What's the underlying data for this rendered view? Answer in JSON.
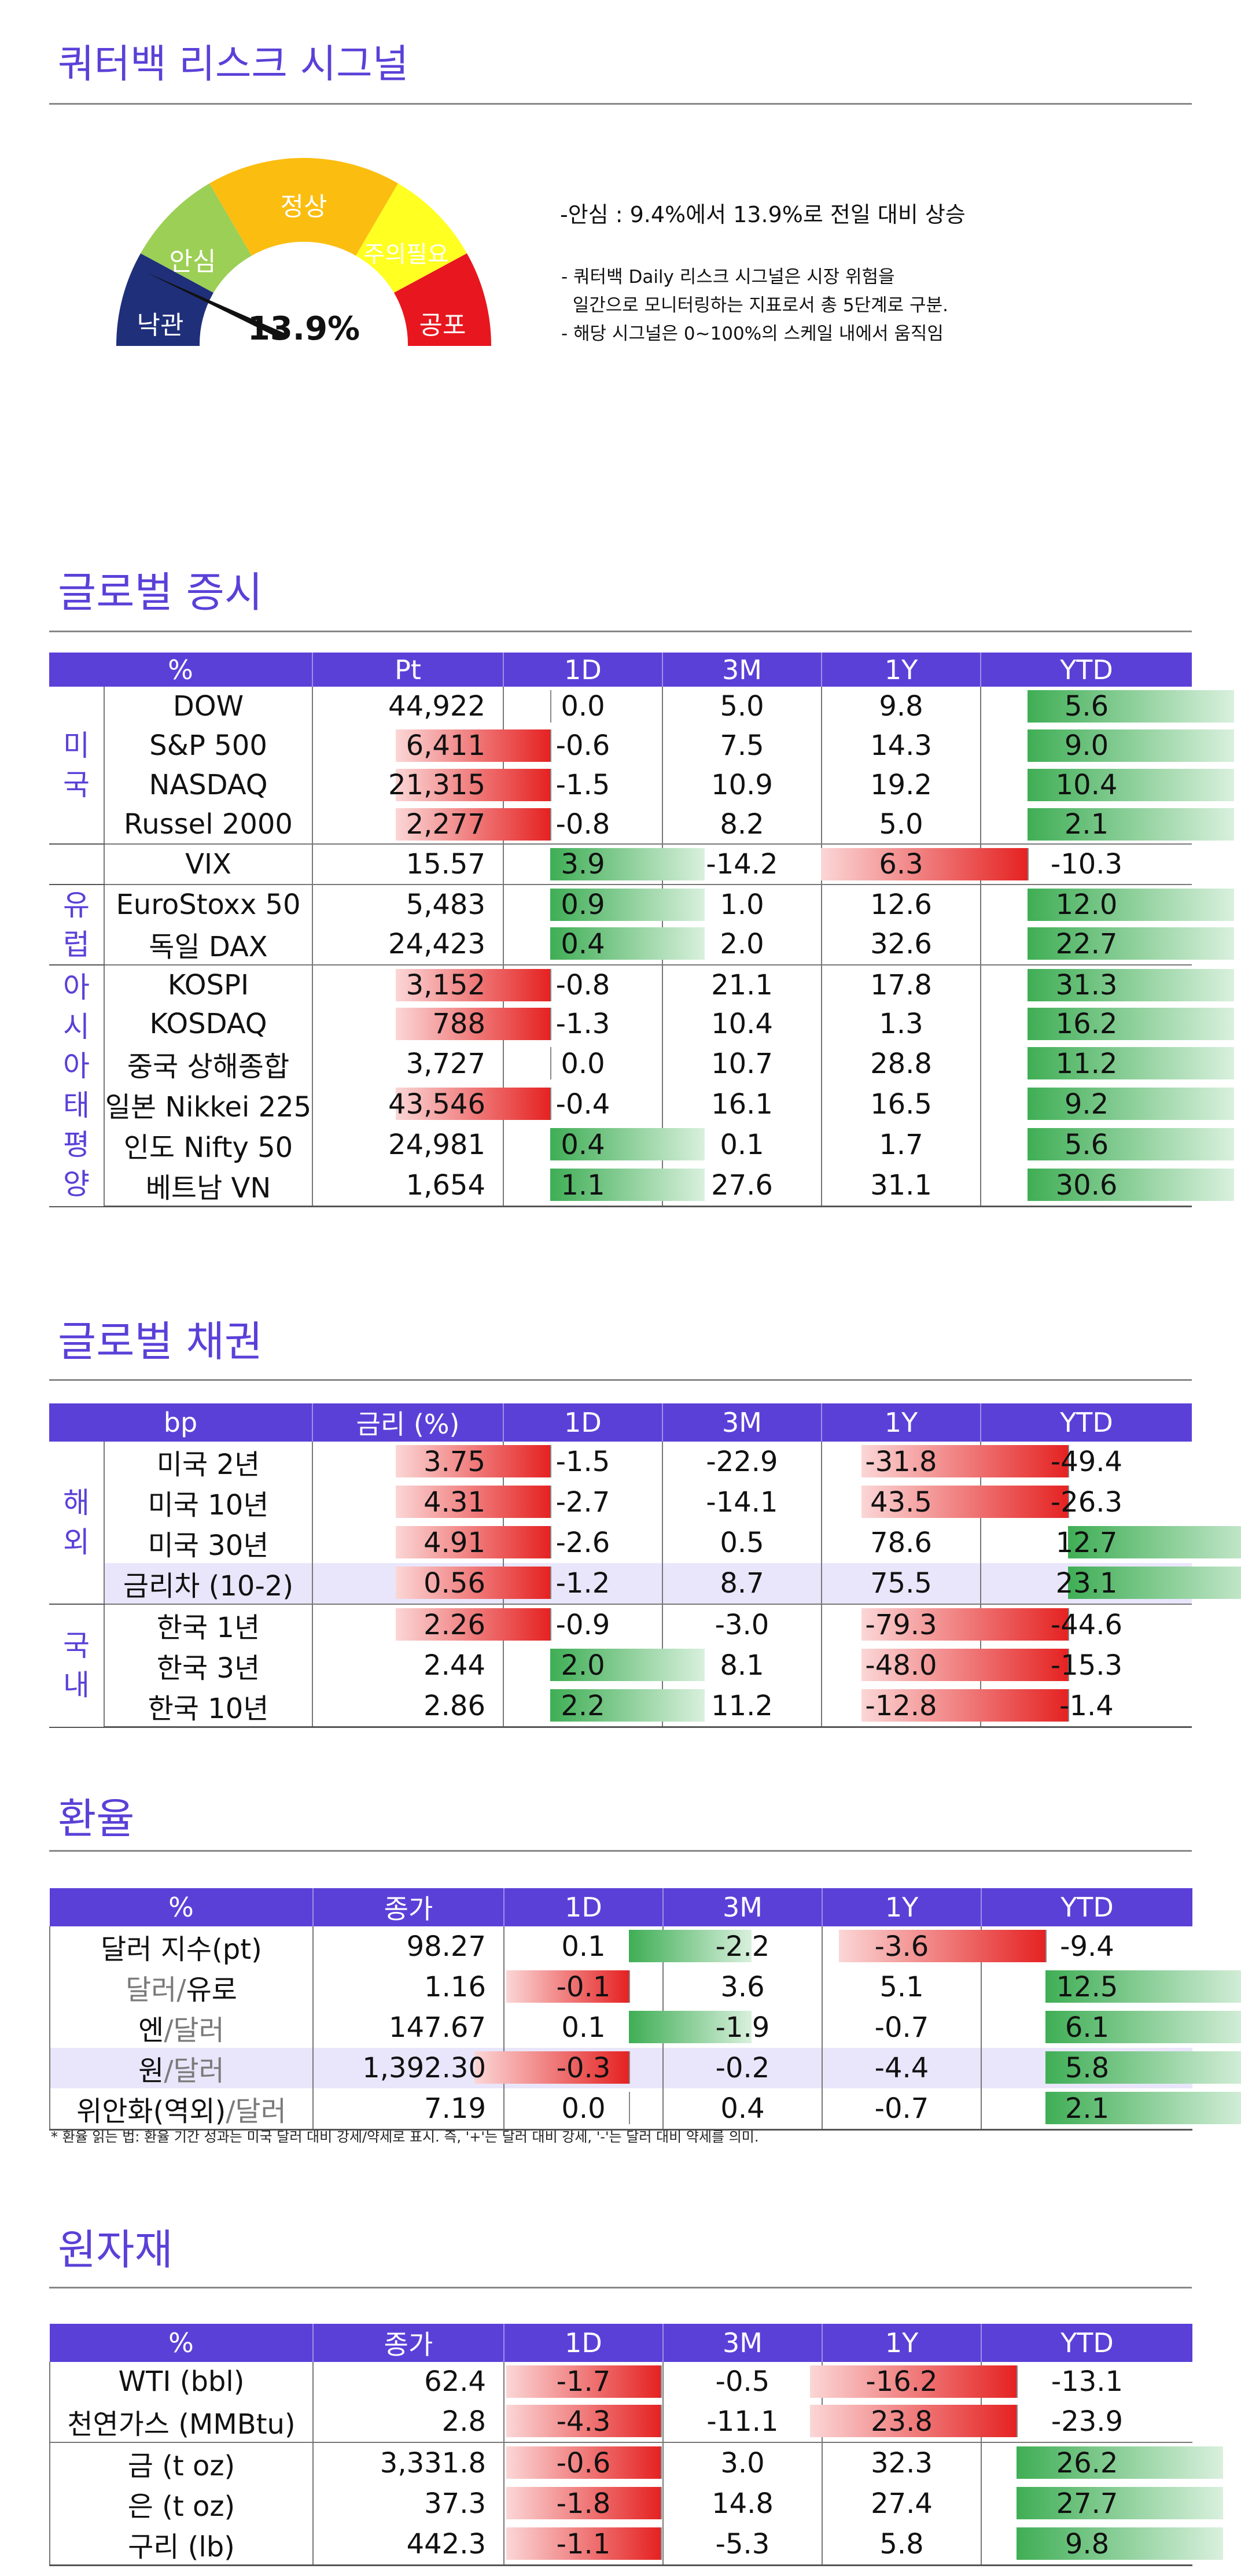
{
  "signal": {
    "title": "쿼터백 리스크 시그널",
    "zones": [
      "낙관",
      "안심",
      "정상",
      "주의필요",
      "공포"
    ],
    "value": "13.9%",
    "value_num": 13.9,
    "summary": "-안심 : 9.4%에서 13.9%로 전일 대비 상승",
    "notes": [
      "- 쿼터백 Daily 리스크 시그널은 시장 위험을",
      "  일간으로 모니터링하는 지표로서 총 5단계로 구분.",
      "- 해당 시그널은 0~100%의 스케일 내에서 움직임"
    ]
  },
  "equity": {
    "title": "글로벌 증시",
    "headers": [
      "%",
      "Pt",
      "1D",
      "3M",
      "1Y",
      "YTD"
    ],
    "scale": {
      "1D": 0.045,
      "YTD": 0.0065
    },
    "groups": [
      {
        "label": "미국",
        "rows": 4
      },
      {
        "label": "",
        "rows": 1
      },
      {
        "label": "유럽",
        "rows": 2
      },
      {
        "label": "아시아태평양",
        "rows": 6
      }
    ],
    "rows": [
      {
        "name": "DOW",
        "pt": "44,922",
        "d1": "0.0",
        "m3": "5.0",
        "y1": "9.8",
        "ytd": "5.6"
      },
      {
        "name": "S&P 500",
        "pt": "6,411",
        "d1": "-0.6",
        "m3": "7.5",
        "y1": "14.3",
        "ytd": "9.0"
      },
      {
        "name": "NASDAQ",
        "pt": "21,315",
        "d1": "-1.5",
        "m3": "10.9",
        "y1": "19.2",
        "ytd": "10.4"
      },
      {
        "name": "Russel 2000",
        "pt": "2,277",
        "d1": "-0.8",
        "m3": "8.2",
        "y1": "5.0",
        "ytd": "2.1"
      },
      {
        "name": "VIX",
        "pt": "15.57",
        "d1": "3.9",
        "m3": "-14.2",
        "y1": "6.3",
        "ytd": "-10.3"
      },
      {
        "name": "EuroStoxx 50",
        "pt": "5,483",
        "d1": "0.9",
        "m3": "1.0",
        "y1": "12.6",
        "ytd": "12.0"
      },
      {
        "name": "독일 DAX",
        "pt": "24,423",
        "d1": "0.4",
        "m3": "2.0",
        "y1": "32.6",
        "ytd": "22.7"
      },
      {
        "name": "KOSPI",
        "pt": "3,152",
        "d1": "-0.8",
        "m3": "21.1",
        "y1": "17.8",
        "ytd": "31.3"
      },
      {
        "name": "KOSDAQ",
        "pt": "788",
        "d1": "-1.3",
        "m3": "10.4",
        "y1": "1.3",
        "ytd": "16.2"
      },
      {
        "name": "중국 상해종합",
        "pt": "3,727",
        "d1": "0.0",
        "m3": "10.7",
        "y1": "28.8",
        "ytd": "11.2"
      },
      {
        "name": "일본 Nikkei 225",
        "pt": "43,546",
        "d1": "-0.4",
        "m3": "16.1",
        "y1": "16.5",
        "ytd": "9.2"
      },
      {
        "name": "인도 Nifty 50",
        "pt": "24,981",
        "d1": "0.4",
        "m3": "0.1",
        "y1": "1.7",
        "ytd": "5.6"
      },
      {
        "name": "베트남 VN",
        "pt": "1,654",
        "d1": "1.1",
        "m3": "27.6",
        "y1": "31.1",
        "ytd": "30.6"
      }
    ]
  },
  "bonds": {
    "title": "글로벌 채권",
    "headers": [
      "bp",
      "금리 (%)",
      "1D",
      "3M",
      "1Y",
      "YTD"
    ],
    "scale": {
      "1D": 0.027,
      "YTD": 0.0038
    },
    "groups": [
      {
        "label": "해외",
        "rows": 4
      },
      {
        "label": "국내",
        "rows": 3
      }
    ],
    "rows": [
      {
        "name": "미국 2년",
        "pt": "3.75",
        "d1": "-1.5",
        "m3": "-22.9",
        "y1": "-31.8",
        "ytd": "-49.4"
      },
      {
        "name": "미국 10년",
        "pt": "4.31",
        "d1": "-2.7",
        "m3": "-14.1",
        "y1": "43.5",
        "ytd": "-26.3"
      },
      {
        "name": "미국 30년",
        "pt": "4.91",
        "d1": "-2.6",
        "m3": "0.5",
        "y1": "78.6",
        "ytd": "12.7"
      },
      {
        "name": "금리차 (10-2)",
        "pt": "0.56",
        "d1": "-1.2",
        "m3": "8.7",
        "y1": "75.5",
        "ytd": "23.1"
      },
      {
        "name": "한국 1년",
        "pt": "2.26",
        "d1": "-0.9",
        "m3": "-3.0",
        "y1": "-79.3",
        "ytd": "-44.6"
      },
      {
        "name": "한국 3년",
        "pt": "2.44",
        "d1": "2.0",
        "m3": "8.1",
        "y1": "-48.0",
        "ytd": "-15.3"
      },
      {
        "name": "한국 10년",
        "pt": "2.86",
        "d1": "2.2",
        "m3": "11.2",
        "y1": "-12.8",
        "ytd": "-1.4"
      }
    ]
  },
  "fx": {
    "title": "환율",
    "headers": [
      "%",
      "종가",
      "1D",
      "3M",
      "1Y",
      "YTD"
    ],
    "scale": {
      "1D": 0.13,
      "YTD": 0.0094
    },
    "rows": [
      {
        "name": "달러 지수(pt)",
        "pt": "98.27",
        "d1": "0.1",
        "m3": "-2.2",
        "y1": "-3.6",
        "ytd": "-9.4"
      },
      {
        "name": "달러/유로",
        "pt": "1.16",
        "d1": "-0.1",
        "m3": "3.6",
        "y1": "5.1",
        "ytd": "12.5"
      },
      {
        "name": "엔/달러",
        "pt": "147.67",
        "d1": "0.1",
        "m3": "-1.9",
        "y1": "-0.7",
        "ytd": "6.1"
      },
      {
        "name": "원/달러",
        "pt": "1,392.30",
        "d1": "-0.3",
        "m3": "-0.2",
        "y1": "-4.4",
        "ytd": "5.8"
      },
      {
        "name": "위안화(역외)/달러",
        "pt": "7.19",
        "d1": "0.0",
        "m3": "0.4",
        "y1": "-0.7",
        "ytd": "2.1"
      }
    ],
    "footnote": "* 환율 읽는 법: 환율 기간 성과는 미국 달러 대비 강세/약세로 표시. 즉, '+'는 달러 대비 강세, '-'는 달러 대비 약세를 의미."
  },
  "commod": {
    "title": "원자재",
    "headers": [
      "%",
      "종가",
      "1D",
      "3M",
      "1Y",
      "YTD"
    ],
    "scale": {
      "1D": 0.043,
      "YTD": 0.0073
    },
    "rows": [
      {
        "name": "WTI (bbl)",
        "pt": "62.4",
        "d1": "-1.7",
        "m3": "-0.5",
        "y1": "-16.2",
        "ytd": "-13.1"
      },
      {
        "name": "천연가스 (MMBtu)",
        "pt": "2.8",
        "d1": "-4.3",
        "m3": "-11.1",
        "y1": "23.8",
        "ytd": "-23.9"
      },
      {
        "name": "금 (t oz)",
        "pt": "3,331.8",
        "d1": "-0.6",
        "m3": "3.0",
        "y1": "32.3",
        "ytd": "26.2"
      },
      {
        "name": "은 (t oz)",
        "pt": "37.3",
        "d1": "-1.8",
        "m3": "14.8",
        "y1": "27.4",
        "ytd": "27.7"
      },
      {
        "name": "구리 (lb)",
        "pt": "442.3",
        "d1": "-1.1",
        "m3": "-5.3",
        "y1": "5.8",
        "ytd": "9.8"
      }
    ]
  }
}
